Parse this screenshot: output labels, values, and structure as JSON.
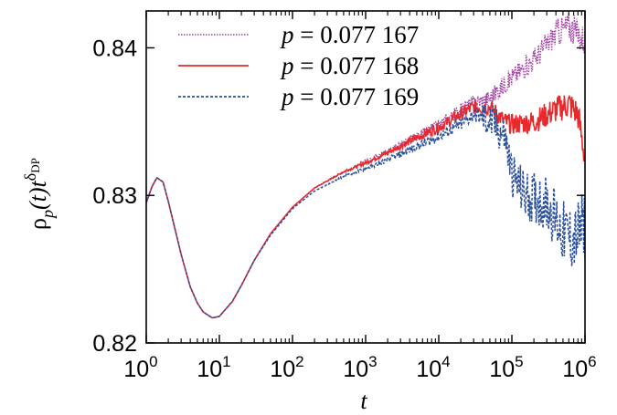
{
  "chart_data": {
    "type": "line",
    "title": "",
    "xlabel": "t",
    "ylabel": {
      "base": "ρ",
      "sub": "p",
      "mid": "(t)t",
      "sup": "δ",
      "supsub": "DP"
    },
    "xscale": "log",
    "xlim": [
      1,
      1000000
    ],
    "ylim": [
      0.82,
      0.8425
    ],
    "x_ticks": [
      {
        "base": "10",
        "exp": "0",
        "value": 1
      },
      {
        "base": "10",
        "exp": "1",
        "value": 10
      },
      {
        "base": "10",
        "exp": "2",
        "value": 100
      },
      {
        "base": "10",
        "exp": "3",
        "value": 1000
      },
      {
        "base": "10",
        "exp": "4",
        "value": 10000
      },
      {
        "base": "10",
        "exp": "5",
        "value": 100000
      },
      {
        "base": "10",
        "exp": "6",
        "value": 1000000
      }
    ],
    "y_ticks": [
      {
        "label": "0.82",
        "value": 0.82
      },
      {
        "label": "0.83",
        "value": 0.83
      },
      {
        "label": "0.84",
        "value": 0.84
      }
    ],
    "grid": false,
    "legend_position": "top-left",
    "series": [
      {
        "name_prefix": "p",
        "name_value": " = 0.077 167",
        "color": "#a040a0",
        "dash": "1.5,1.5",
        "width": 1.4,
        "noise_seed": 3,
        "data": [
          [
            1,
            0.8295
          ],
          [
            1.2,
            0.8306
          ],
          [
            1.4,
            0.8312
          ],
          [
            1.7,
            0.8309
          ],
          [
            2,
            0.8296
          ],
          [
            3,
            0.826
          ],
          [
            4,
            0.8238
          ],
          [
            5,
            0.8227
          ],
          [
            6,
            0.8221
          ],
          [
            8,
            0.8217
          ],
          [
            10,
            0.8218
          ],
          [
            15,
            0.8228
          ],
          [
            20,
            0.8239
          ],
          [
            30,
            0.8256
          ],
          [
            50,
            0.8274
          ],
          [
            100,
            0.8292
          ],
          [
            200,
            0.8305
          ],
          [
            500,
            0.8316
          ],
          [
            1000,
            0.8323
          ],
          [
            2000,
            0.833
          ],
          [
            5000,
            0.834
          ],
          [
            10000,
            0.8348
          ],
          [
            20000,
            0.8358
          ],
          [
            30000,
            0.8363
          ],
          [
            50000,
            0.8366
          ],
          [
            100000,
            0.838
          ],
          [
            200000,
            0.8392
          ],
          [
            400000,
            0.841
          ],
          [
            600000,
            0.8415
          ],
          [
            1000000,
            0.8405
          ]
        ]
      },
      {
        "name_prefix": "p",
        "name_value": " = 0.077 168",
        "color": "#e8282a",
        "dash": "",
        "width": 1.6,
        "noise_seed": 7,
        "data": [
          [
            1,
            0.8295
          ],
          [
            1.2,
            0.8306
          ],
          [
            1.4,
            0.8312
          ],
          [
            1.7,
            0.8309
          ],
          [
            2,
            0.8296
          ],
          [
            3,
            0.826
          ],
          [
            4,
            0.8238
          ],
          [
            5,
            0.8227
          ],
          [
            6,
            0.8221
          ],
          [
            8,
            0.8217
          ],
          [
            10,
            0.8218
          ],
          [
            15,
            0.8228
          ],
          [
            20,
            0.8239
          ],
          [
            30,
            0.8256
          ],
          [
            50,
            0.8274
          ],
          [
            100,
            0.8292
          ],
          [
            200,
            0.8305
          ],
          [
            500,
            0.8316
          ],
          [
            1000,
            0.8322
          ],
          [
            2000,
            0.8329
          ],
          [
            5000,
            0.8339
          ],
          [
            10000,
            0.8346
          ],
          [
            20000,
            0.8355
          ],
          [
            30000,
            0.836
          ],
          [
            50000,
            0.836
          ],
          [
            80000,
            0.835
          ],
          [
            100000,
            0.8348
          ],
          [
            200000,
            0.835
          ],
          [
            400000,
            0.8358
          ],
          [
            600000,
            0.8362
          ],
          [
            800000,
            0.8355
          ],
          [
            1000000,
            0.8325
          ]
        ]
      },
      {
        "name_prefix": "p",
        "name_value": " = 0.077 169",
        "color": "#2a4f9c",
        "dash": "3,2",
        "width": 1.5,
        "noise_seed": 11,
        "data": [
          [
            1,
            0.8295
          ],
          [
            1.2,
            0.8306
          ],
          [
            1.4,
            0.8312
          ],
          [
            1.7,
            0.8309
          ],
          [
            2,
            0.8296
          ],
          [
            3,
            0.826
          ],
          [
            4,
            0.8238
          ],
          [
            5,
            0.8227
          ],
          [
            6,
            0.8221
          ],
          [
            8,
            0.8217
          ],
          [
            10,
            0.8218
          ],
          [
            15,
            0.8228
          ],
          [
            20,
            0.8239
          ],
          [
            30,
            0.8256
          ],
          [
            50,
            0.8273
          ],
          [
            100,
            0.8291
          ],
          [
            200,
            0.8303
          ],
          [
            500,
            0.8313
          ],
          [
            1000,
            0.8318
          ],
          [
            2000,
            0.8324
          ],
          [
            5000,
            0.8333
          ],
          [
            10000,
            0.834
          ],
          [
            20000,
            0.8348
          ],
          [
            30000,
            0.8355
          ],
          [
            50000,
            0.835
          ],
          [
            80000,
            0.834
          ],
          [
            100000,
            0.8315
          ],
          [
            150000,
            0.83
          ],
          [
            200000,
            0.8298
          ],
          [
            300000,
            0.8295
          ],
          [
            500000,
            0.8275
          ],
          [
            700000,
            0.827
          ],
          [
            1000000,
            0.828
          ]
        ]
      }
    ]
  }
}
